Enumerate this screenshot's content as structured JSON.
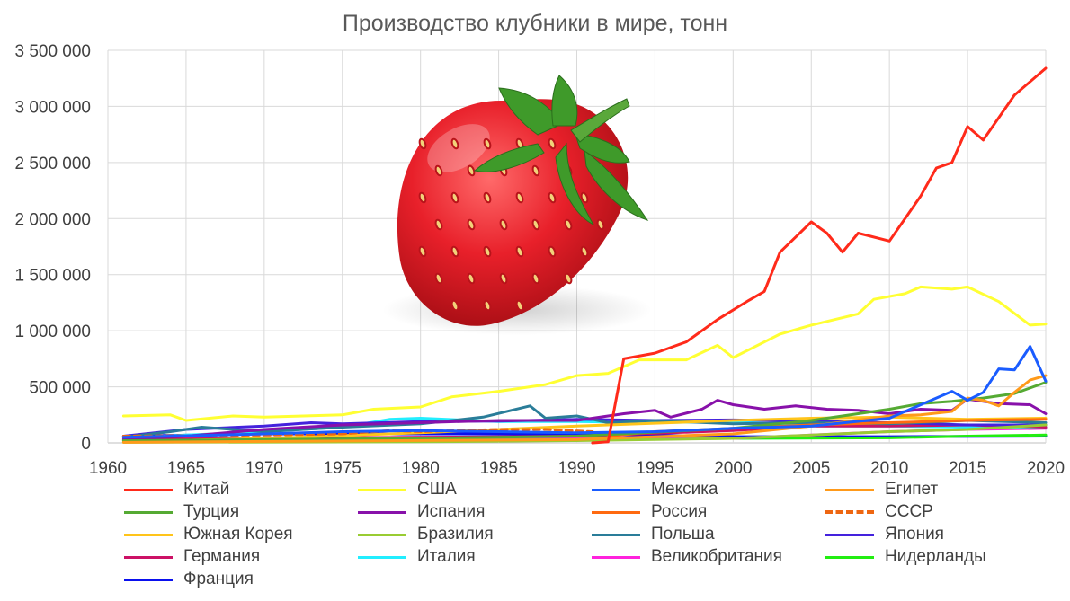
{
  "chart_data": {
    "type": "line",
    "title": "Производство клубники в мире, тонн",
    "xlim": [
      1960,
      2020
    ],
    "ylim": [
      0,
      3500000
    ],
    "x_ticks": [
      "1960",
      "1965",
      "1970",
      "1975",
      "1980",
      "1985",
      "1990",
      "1995",
      "2000",
      "2005",
      "2010",
      "2015",
      "2020"
    ],
    "y_ticks": [
      "0",
      "500 000",
      "1 000 000",
      "1 500 000",
      "2 000 000",
      "2 500 000",
      "3 000 000",
      "3 500 000"
    ],
    "grid": true,
    "legend_position": "bottom",
    "illustration": "strawberry",
    "series": [
      {
        "name": "Китай",
        "color": "#ff2a1a",
        "dashed": false,
        "x": [
          1991,
          1992,
          1993,
          1995,
          1997,
          1999,
          2001,
          2002,
          2003,
          2005,
          2006,
          2007,
          2008,
          2010,
          2012,
          2013,
          2014,
          2015,
          2016,
          2018,
          2020
        ],
        "y": [
          0,
          10000,
          750000,
          800000,
          900000,
          1100000,
          1270000,
          1350000,
          1700000,
          1970000,
          1870000,
          1700000,
          1870000,
          1800000,
          2200000,
          2450000,
          2500000,
          2820000,
          2700000,
          3100000,
          3340000
        ]
      },
      {
        "name": "США",
        "color": "#ffff33",
        "dashed": false,
        "x": [
          1961,
          1964,
          1965,
          1968,
          1970,
          1975,
          1977,
          1980,
          1982,
          1985,
          1988,
          1990,
          1992,
          1994,
          1997,
          1999,
          2000,
          2003,
          2005,
          2008,
          2009,
          2011,
          2012,
          2014,
          2015,
          2017,
          2019,
          2020
        ],
        "y": [
          240000,
          250000,
          200000,
          240000,
          230000,
          250000,
          300000,
          320000,
          410000,
          460000,
          520000,
          600000,
          620000,
          740000,
          740000,
          870000,
          760000,
          970000,
          1050000,
          1150000,
          1280000,
          1330000,
          1390000,
          1370000,
          1390000,
          1260000,
          1050000,
          1060000
        ]
      },
      {
        "name": "Мексика",
        "color": "#1a5cff",
        "dashed": false,
        "x": [
          1961,
          1970,
          1975,
          1980,
          1985,
          1990,
          1995,
          2000,
          2005,
          2010,
          2013,
          2014,
          2015,
          2016,
          2017,
          2018,
          2019,
          2020
        ],
        "y": [
          50000,
          80000,
          100000,
          110000,
          100000,
          90000,
          100000,
          130000,
          150000,
          220000,
          400000,
          460000,
          380000,
          450000,
          660000,
          650000,
          860000,
          550000
        ]
      },
      {
        "name": "Египет",
        "color": "#ff9a1a",
        "dashed": false,
        "x": [
          1961,
          1990,
          2000,
          2005,
          2010,
          2012,
          2014,
          2015,
          2016,
          2017,
          2018,
          2019,
          2020
        ],
        "y": [
          5000,
          30000,
          80000,
          150000,
          240000,
          250000,
          280000,
          400000,
          380000,
          330000,
          450000,
          560000,
          600000
        ]
      },
      {
        "name": "Турция",
        "color": "#55aa33",
        "dashed": false,
        "x": [
          1961,
          1970,
          1980,
          1990,
          2000,
          2005,
          2008,
          2010,
          2012,
          2014,
          2016,
          2018,
          2020
        ],
        "y": [
          20000,
          30000,
          40000,
          60000,
          130000,
          200000,
          260000,
          300000,
          350000,
          370000,
          400000,
          440000,
          540000
        ]
      },
      {
        "name": "Испания",
        "color": "#8811aa",
        "dashed": false,
        "x": [
          1961,
          1965,
          1970,
          1975,
          1980,
          1985,
          1990,
          1993,
          1995,
          1996,
          1998,
          1999,
          2000,
          2002,
          2004,
          2006,
          2008,
          2010,
          2012,
          2014,
          2015,
          2017,
          2019,
          2020
        ],
        "y": [
          30000,
          60000,
          120000,
          160000,
          180000,
          200000,
          200000,
          260000,
          290000,
          230000,
          300000,
          380000,
          340000,
          300000,
          330000,
          300000,
          290000,
          260000,
          300000,
          290000,
          390000,
          350000,
          340000,
          260000
        ]
      },
      {
        "name": "Россия",
        "color": "#ff6a10",
        "dashed": false,
        "x": [
          1992,
          1995,
          2000,
          2005,
          2010,
          2015,
          2020
        ],
        "y": [
          60000,
          100000,
          130000,
          160000,
          180000,
          200000,
          210000
        ]
      },
      {
        "name": "СССР",
        "color": "#ee6611",
        "dashed": true,
        "x": [
          1961,
          1970,
          1975,
          1978,
          1980,
          1985,
          1988,
          1991
        ],
        "y": [
          60000,
          70000,
          80000,
          110000,
          100000,
          120000,
          120000,
          100000
        ]
      },
      {
        "name": "Южная Корея",
        "color": "#ffc41a",
        "dashed": false,
        "x": [
          1961,
          1970,
          1980,
          1990,
          2000,
          2005,
          2010,
          2015,
          2020
        ],
        "y": [
          10000,
          40000,
          90000,
          150000,
          200000,
          220000,
          230000,
          210000,
          220000
        ]
      },
      {
        "name": "Бразилия",
        "color": "#99cc33",
        "dashed": false,
        "x": [
          1961,
          1980,
          1990,
          2000,
          2010,
          2015,
          2020
        ],
        "y": [
          5000,
          10000,
          20000,
          40000,
          100000,
          120000,
          160000
        ]
      },
      {
        "name": "Польша",
        "color": "#2a7d99",
        "dashed": false,
        "x": [
          1961,
          1964,
          1966,
          1970,
          1975,
          1980,
          1984,
          1987,
          1988,
          1990,
          1992,
          1995,
          2000,
          2005,
          2010,
          2015,
          2020
        ],
        "y": [
          50000,
          100000,
          140000,
          100000,
          140000,
          170000,
          230000,
          330000,
          220000,
          240000,
          180000,
          200000,
          170000,
          180000,
          170000,
          200000,
          180000
        ]
      },
      {
        "name": "Япония",
        "color": "#4422dd",
        "dashed": false,
        "x": [
          1961,
          1965,
          1970,
          1973,
          1975,
          1980,
          1985,
          1990,
          1995,
          2000,
          2005,
          2010,
          2015,
          2020
        ],
        "y": [
          60000,
          120000,
          150000,
          180000,
          170000,
          190000,
          195000,
          210000,
          200000,
          205000,
          195000,
          180000,
          160000,
          160000
        ]
      },
      {
        "name": "Германия",
        "color": "#cc1166",
        "dashed": false,
        "x": [
          1961,
          1970,
          1980,
          1990,
          2000,
          2005,
          2010,
          2015,
          2020
        ],
        "y": [
          30000,
          40000,
          50000,
          60000,
          110000,
          150000,
          150000,
          160000,
          140000
        ]
      },
      {
        "name": "Италия",
        "color": "#22eeff",
        "dashed": false,
        "x": [
          1961,
          1965,
          1970,
          1975,
          1978,
          1980,
          1985,
          1990,
          1995,
          2000,
          2005,
          2010,
          2015,
          2020
        ],
        "y": [
          40000,
          70000,
          100000,
          140000,
          210000,
          220000,
          190000,
          190000,
          180000,
          190000,
          150000,
          150000,
          140000,
          140000
        ]
      },
      {
        "name": "Великобритания",
        "color": "#ff22dd",
        "dashed": false,
        "x": [
          1961,
          1970,
          1980,
          1990,
          2000,
          2005,
          2010,
          2015,
          2020
        ],
        "y": [
          40000,
          45000,
          50000,
          50000,
          40000,
          70000,
          100000,
          120000,
          130000
        ]
      },
      {
        "name": "Нидерланды",
        "color": "#22ee11",
        "dashed": false,
        "x": [
          1961,
          1970,
          1980,
          1990,
          2000,
          2010,
          2015,
          2020
        ],
        "y": [
          20000,
          25000,
          30000,
          30000,
          40000,
          45000,
          60000,
          70000
        ]
      },
      {
        "name": "Франция",
        "color": "#0a10ee",
        "dashed": false,
        "x": [
          1961,
          1970,
          1980,
          1990,
          2000,
          2010,
          2020
        ],
        "y": [
          60000,
          80000,
          80000,
          80000,
          55000,
          55000,
          60000
        ]
      }
    ]
  }
}
